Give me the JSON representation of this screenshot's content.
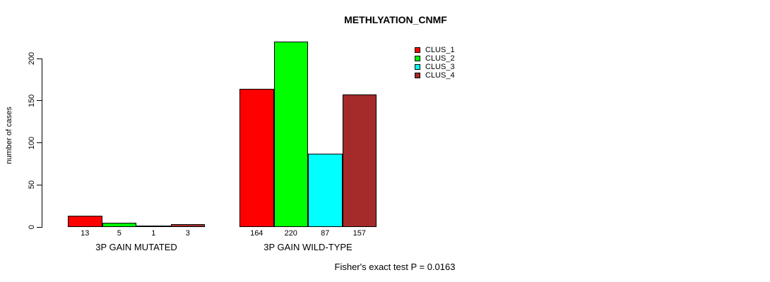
{
  "chart_data": {
    "type": "bar",
    "title": "METHLYATION_CNMF",
    "ylabel": "number of cases",
    "xlabel": "",
    "categories": [
      "3P GAIN MUTATED",
      "3P GAIN WILD-TYPE"
    ],
    "series": [
      {
        "name": "CLUS_1",
        "color": "#ff0000",
        "values": [
          13,
          164
        ]
      },
      {
        "name": "CLUS_2",
        "color": "#00ff00",
        "values": [
          5,
          220
        ]
      },
      {
        "name": "CLUS_3",
        "color": "#00ffff",
        "values": [
          1,
          87
        ]
      },
      {
        "name": "CLUS_4",
        "color": "#a52a2a",
        "values": [
          3,
          157
        ]
      }
    ],
    "yticks": [
      0,
      50,
      100,
      150,
      200
    ],
    "ylim": [
      0,
      220
    ],
    "grid": false,
    "bar_outline_color": "#000000",
    "value_labels_shown": true,
    "legend_position": "top-right",
    "footnote": "Fisher's exact test P = 0.0163"
  }
}
